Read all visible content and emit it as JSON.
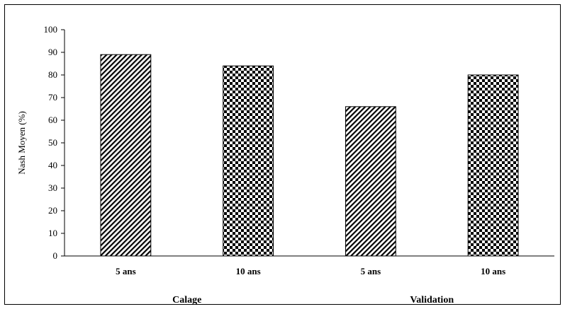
{
  "chart_data": {
    "type": "bar",
    "title": "",
    "xlabel": "",
    "ylabel": "Nash Moyen (%)",
    "ylim": [
      0,
      100
    ],
    "yticks": [
      0,
      10,
      20,
      30,
      40,
      50,
      60,
      70,
      80,
      90,
      100
    ],
    "categories": [
      "5 ans",
      "10 ans",
      "5 ans",
      "10 ans"
    ],
    "groups": [
      {
        "label": "Calage",
        "categories": [
          0,
          1
        ]
      },
      {
        "label": "Validation",
        "categories": [
          2,
          3
        ]
      }
    ],
    "values": [
      89,
      84,
      66,
      80
    ],
    "bar_patterns": [
      "diagonal-hatch",
      "checkerboard",
      "diagonal-hatch",
      "checkerboard"
    ],
    "grid": false,
    "legend": "none"
  }
}
